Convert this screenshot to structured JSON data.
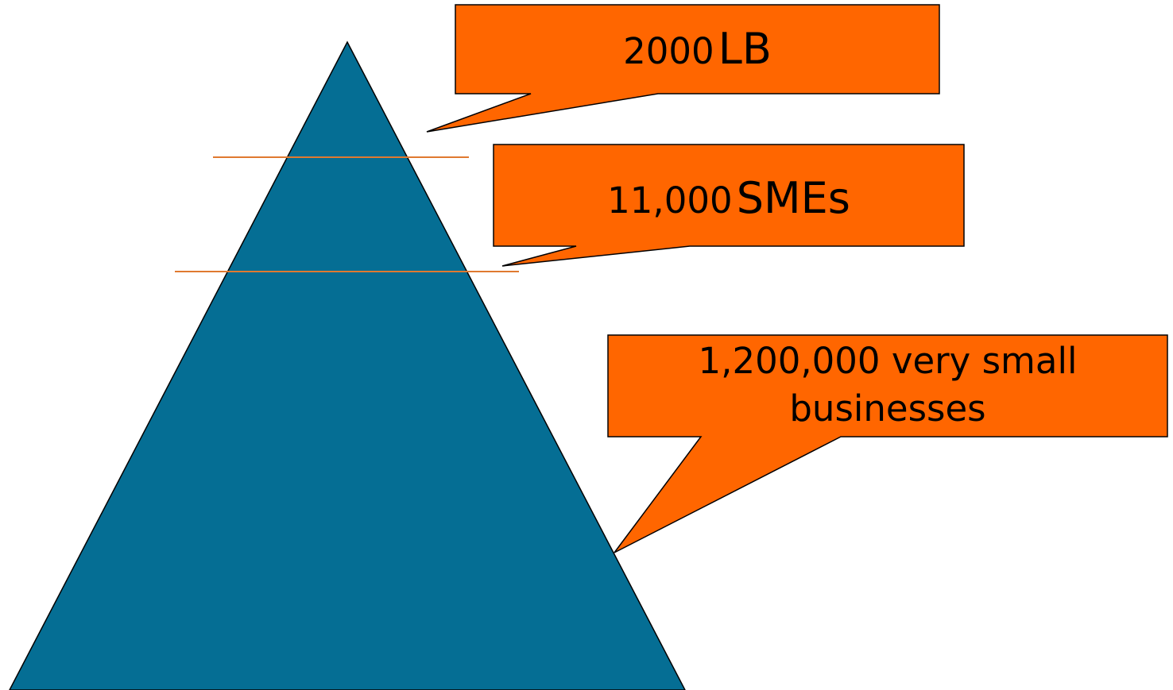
{
  "colors": {
    "pyramid_fill": "#056e94",
    "callout_fill": "#ff6600",
    "divider_line": "#e07a30",
    "outline": "#000000"
  },
  "callouts": {
    "large_businesses": {
      "number": "2000",
      "unit": "LB"
    },
    "smes": {
      "number": "11,000",
      "unit": "SMEs"
    },
    "very_small_businesses": {
      "text": "1,200,000 very small businesses"
    }
  }
}
